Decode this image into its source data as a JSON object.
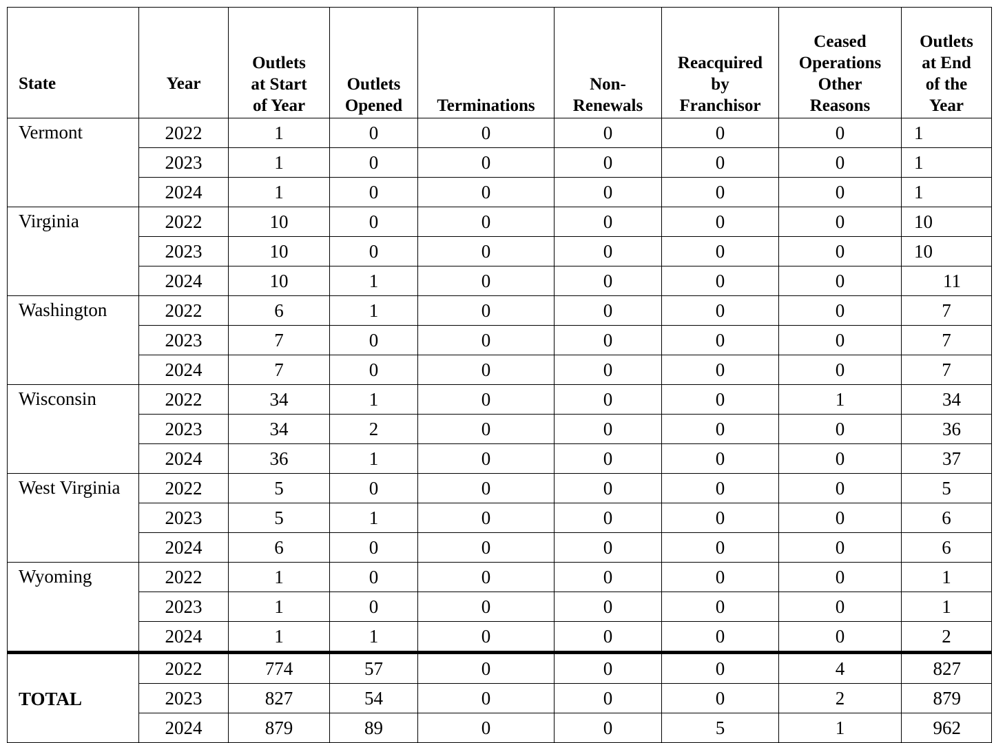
{
  "headers": {
    "state": "State",
    "year": "Year",
    "start": [
      "Outlets",
      "at Start",
      "of Year"
    ],
    "opened": [
      "Outlets",
      "Opened"
    ],
    "terminations": [
      "Terminations"
    ],
    "nonrenewals": [
      "Non-",
      "Renewals"
    ],
    "reacquired": [
      "Reacquired",
      "by",
      "Franchisor"
    ],
    "ceased": [
      "Ceased",
      "Operations",
      "Other",
      "Reasons"
    ],
    "end": [
      "Outlets",
      "at End",
      "of the",
      "Year"
    ]
  },
  "groups": [
    {
      "state": "Vermont",
      "rows": [
        {
          "year": "2022",
          "start": "1",
          "opened": "0",
          "terminations": "0",
          "nonrenewals": "0",
          "reacquired": "0",
          "ceased": "0",
          "end": "1"
        },
        {
          "year": "2023",
          "start": "1",
          "opened": "0",
          "terminations": "0",
          "nonrenewals": "0",
          "reacquired": "0",
          "ceased": "0",
          "end": "1"
        },
        {
          "year": "2024",
          "start": "1",
          "opened": "0",
          "terminations": "0",
          "nonrenewals": "0",
          "reacquired": "0",
          "ceased": "0",
          "end": "1"
        }
      ]
    },
    {
      "state": "Virginia",
      "rows": [
        {
          "year": "2022",
          "start": "10",
          "opened": "0",
          "terminations": "0",
          "nonrenewals": "0",
          "reacquired": "0",
          "ceased": "0",
          "end": "10"
        },
        {
          "year": "2023",
          "start": "10",
          "opened": "0",
          "terminations": "0",
          "nonrenewals": "0",
          "reacquired": "0",
          "ceased": "0",
          "end": "10"
        },
        {
          "year": "2024",
          "start": "10",
          "opened": "1",
          "terminations": "0",
          "nonrenewals": "0",
          "reacquired": "0",
          "ceased": "0",
          "end": "11"
        }
      ]
    },
    {
      "state": "Washington",
      "rows": [
        {
          "year": "2022",
          "start": "6",
          "opened": "1",
          "terminations": "0",
          "nonrenewals": "0",
          "reacquired": "0",
          "ceased": "0",
          "end": "7"
        },
        {
          "year": "2023",
          "start": "7",
          "opened": "0",
          "terminations": "0",
          "nonrenewals": "0",
          "reacquired": "0",
          "ceased": "0",
          "end": "7"
        },
        {
          "year": "2024",
          "start": "7",
          "opened": "0",
          "terminations": "0",
          "nonrenewals": "0",
          "reacquired": "0",
          "ceased": "0",
          "end": "7"
        }
      ]
    },
    {
      "state": "Wisconsin",
      "rows": [
        {
          "year": "2022",
          "start": "34",
          "opened": "1",
          "terminations": "0",
          "nonrenewals": "0",
          "reacquired": "0",
          "ceased": "1",
          "end": "34"
        },
        {
          "year": "2023",
          "start": "34",
          "opened": "2",
          "terminations": "0",
          "nonrenewals": "0",
          "reacquired": "0",
          "ceased": "0",
          "end": "36"
        },
        {
          "year": "2024",
          "start": "36",
          "opened": "1",
          "terminations": "0",
          "nonrenewals": "0",
          "reacquired": "0",
          "ceased": "0",
          "end": "37"
        }
      ]
    },
    {
      "state": "West Virginia",
      "rows": [
        {
          "year": "2022",
          "start": "5",
          "opened": "0",
          "terminations": "0",
          "nonrenewals": "0",
          "reacquired": "0",
          "ceased": "0",
          "end": "5"
        },
        {
          "year": "2023",
          "start": "5",
          "opened": "1",
          "terminations": "0",
          "nonrenewals": "0",
          "reacquired": "0",
          "ceased": "0",
          "end": "6"
        },
        {
          "year": "2024",
          "start": "6",
          "opened": "0",
          "terminations": "0",
          "nonrenewals": "0",
          "reacquired": "0",
          "ceased": "0",
          "end": "6"
        }
      ]
    },
    {
      "state": "Wyoming",
      "rows": [
        {
          "year": "2022",
          "start": "1",
          "opened": "0",
          "terminations": "0",
          "nonrenewals": "0",
          "reacquired": "0",
          "ceased": "0",
          "end": "1"
        },
        {
          "year": "2023",
          "start": "1",
          "opened": "0",
          "terminations": "0",
          "nonrenewals": "0",
          "reacquired": "0",
          "ceased": "0",
          "end": "1"
        },
        {
          "year": "2024",
          "start": "1",
          "opened": "1",
          "terminations": "0",
          "nonrenewals": "0",
          "reacquired": "0",
          "ceased": "0",
          "end": "2"
        }
      ]
    },
    {
      "state": "TOTAL",
      "rows": [
        {
          "year": "2022",
          "start": "774",
          "opened": "57",
          "terminations": "0",
          "nonrenewals": "0",
          "reacquired": "0",
          "ceased": "4",
          "end": "827"
        },
        {
          "year": "2023",
          "start": "827",
          "opened": "54",
          "terminations": "0",
          "nonrenewals": "0",
          "reacquired": "0",
          "ceased": "2",
          "end": "879"
        },
        {
          "year": "2024",
          "start": "879",
          "opened": "89",
          "terminations": "0",
          "nonrenewals": "0",
          "reacquired": "5",
          "ceased": "1",
          "end": "962"
        }
      ]
    }
  ]
}
